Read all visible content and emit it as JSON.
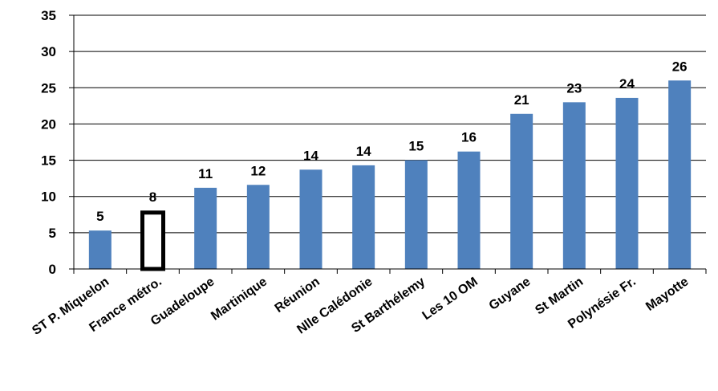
{
  "chart_data": {
    "type": "bar",
    "categories": [
      "ST P. Miquelon",
      "France métro.",
      "Guadeloupe",
      "Martinique",
      "Réunion",
      "Nlle Calédonie",
      "St Barthélemy",
      "Les 10 OM",
      "Guyane",
      "St Martin",
      "Polynésie Fr.",
      "Mayotte"
    ],
    "values": [
      5.3,
      8.0,
      11.2,
      11.6,
      13.7,
      14.3,
      15.0,
      16.2,
      21.4,
      23.0,
      23.6,
      26.0
    ],
    "data_labels": [
      "5",
      "8",
      "11",
      "12",
      "14",
      "14",
      "15",
      "16",
      "21",
      "23",
      "24",
      "26"
    ],
    "highlight_index": 1,
    "ylim": [
      0,
      35
    ],
    "yticks": [
      0,
      5,
      10,
      15,
      20,
      25,
      30,
      35
    ],
    "grid": true,
    "bar_color": "#4f81bd",
    "highlight_fill": "#ffffff",
    "highlight_stroke": "#000000",
    "grid_color": "#000000"
  }
}
